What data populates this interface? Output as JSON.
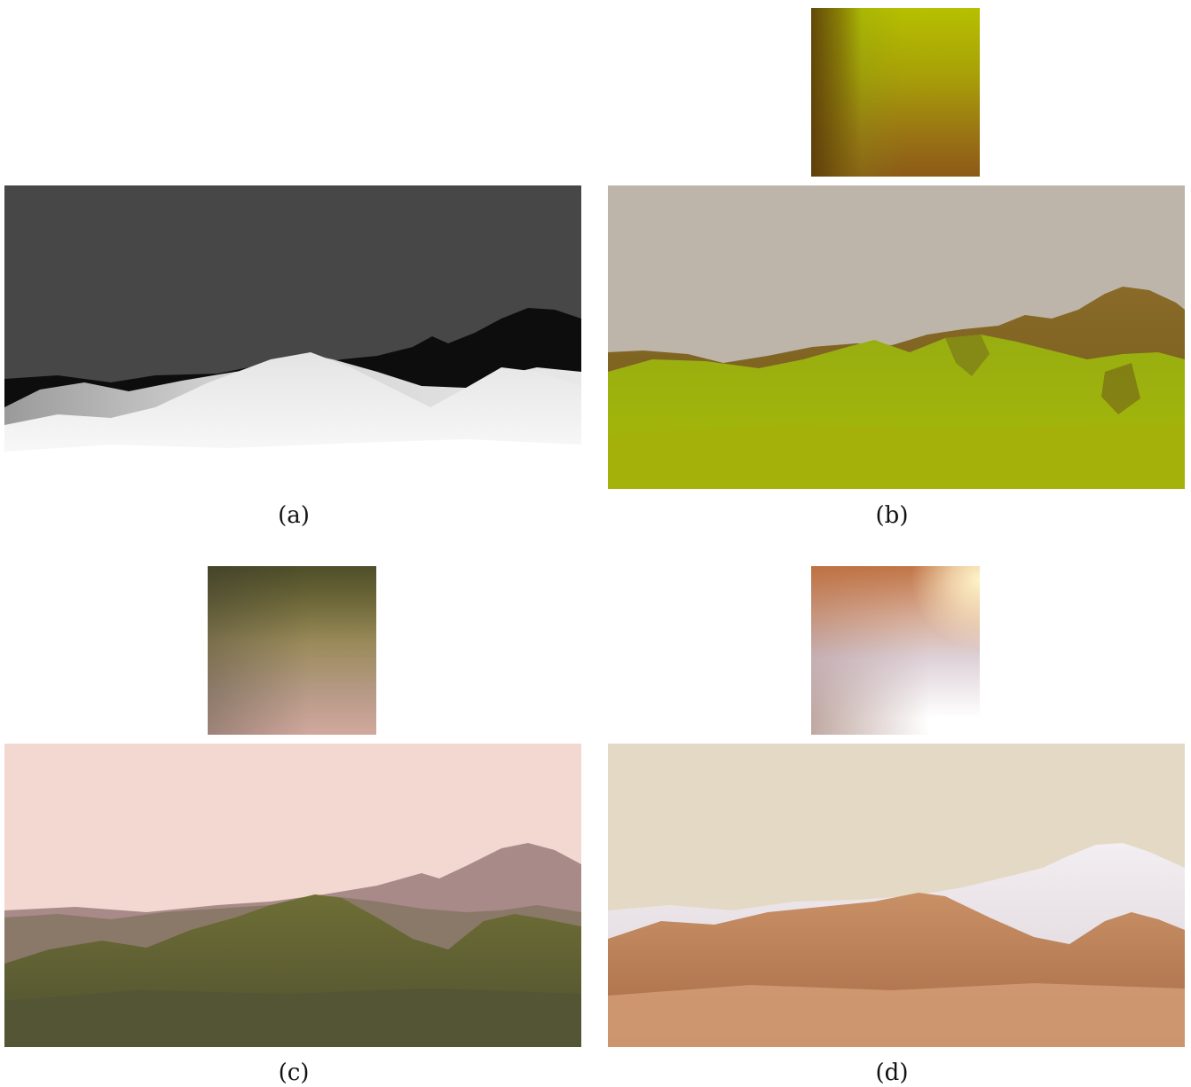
{
  "figure": {
    "panels": [
      {
        "id": "a",
        "caption": "(a)",
        "colors": {
          "sky": "#474747",
          "near": "#ffffff",
          "far": "#0a0a0a"
        }
      },
      {
        "id": "b",
        "caption": "(b)",
        "colors": {
          "sky": "#beb5aa",
          "grass": "#a6b80a",
          "shadow": "#6e5a18"
        }
      },
      {
        "id": "c",
        "caption": "(c)",
        "colors": {
          "sky": "#f2d8d0",
          "hills": "#5e6232",
          "far": "#a88a88"
        }
      },
      {
        "id": "d",
        "caption": "(d)",
        "colors": {
          "sky": "#e4d9c4",
          "hills": "#b57e55",
          "snow": "#e8e2e8"
        }
      }
    ]
  }
}
